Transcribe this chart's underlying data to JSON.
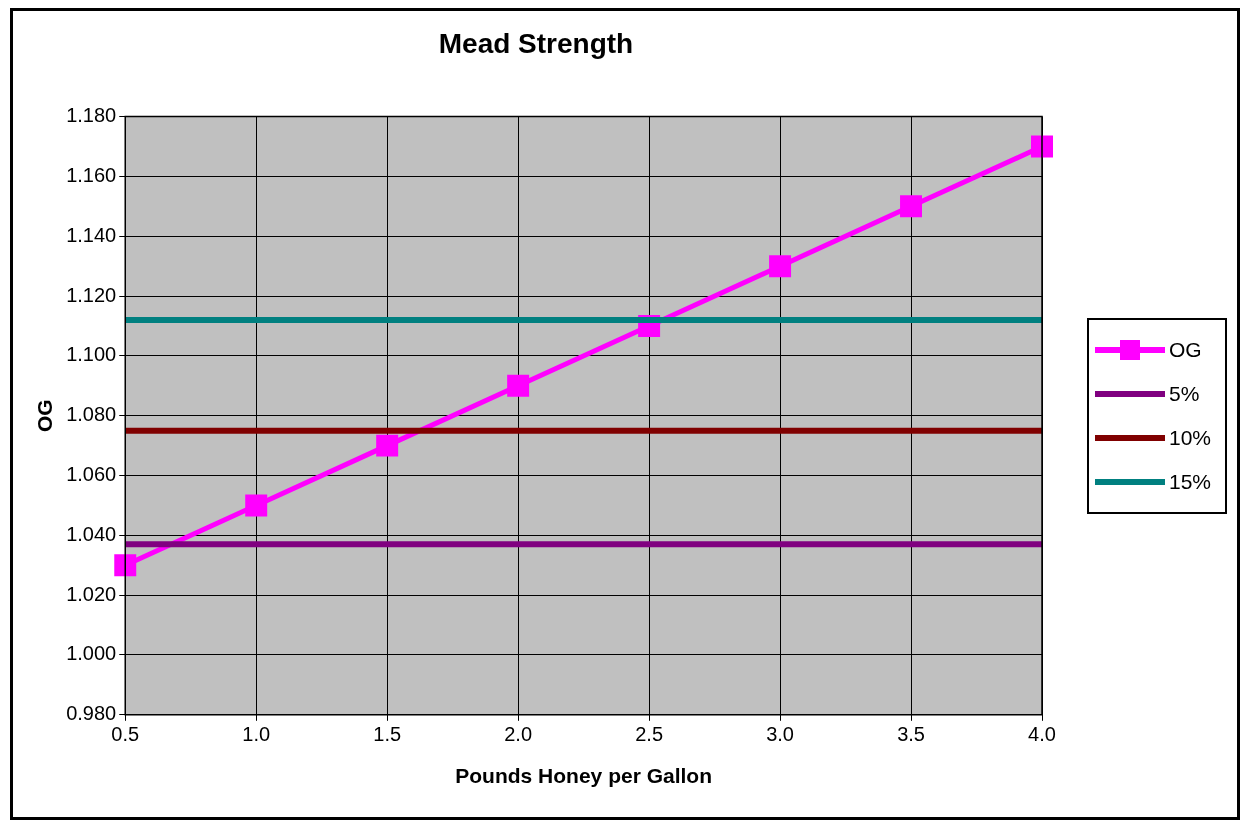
{
  "chart_data": {
    "type": "line",
    "title": "Mead Strength",
    "xlabel": "Pounds Honey per Gallon",
    "ylabel": "OG",
    "categories": [
      "0.5",
      "1.0",
      "1.5",
      "2.0",
      "2.5",
      "3.0",
      "3.5",
      "4.0"
    ],
    "series": [
      {
        "name": "OG",
        "color": "#ff00ff",
        "marker": "square",
        "values": [
          1.03,
          1.05,
          1.07,
          1.09,
          1.11,
          1.13,
          1.15,
          1.17
        ]
      },
      {
        "name": "5%",
        "color": "#800080",
        "marker": "none",
        "values": [
          1.037,
          1.037,
          1.037,
          1.037,
          1.037,
          1.037,
          1.037,
          1.037
        ]
      },
      {
        "name": "10%",
        "color": "#800000",
        "marker": "none",
        "values": [
          1.075,
          1.075,
          1.075,
          1.075,
          1.075,
          1.075,
          1.075,
          1.075
        ]
      },
      {
        "name": "15%",
        "color": "#008080",
        "marker": "none",
        "values": [
          1.112,
          1.112,
          1.112,
          1.112,
          1.112,
          1.112,
          1.112,
          1.112
        ]
      }
    ],
    "ylim": [
      0.98,
      1.18
    ],
    "yticks": [
      {
        "value": 0.98,
        "label": "0.980"
      },
      {
        "value": 1.0,
        "label": "1.000"
      },
      {
        "value": 1.02,
        "label": "1.020"
      },
      {
        "value": 1.04,
        "label": "1.040"
      },
      {
        "value": 1.06,
        "label": "1.060"
      },
      {
        "value": 1.08,
        "label": "1.080"
      },
      {
        "value": 1.1,
        "label": "1.100"
      },
      {
        "value": 1.12,
        "label": "1.120"
      },
      {
        "value": 1.14,
        "label": "1.140"
      },
      {
        "value": 1.16,
        "label": "1.160"
      },
      {
        "value": 1.18,
        "label": "1.180"
      }
    ],
    "grid": true,
    "legend": "right",
    "line_style": "solid"
  }
}
